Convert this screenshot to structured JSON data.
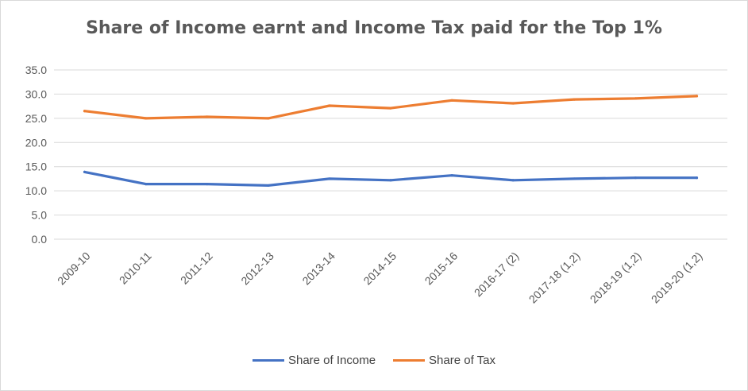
{
  "chart_data": {
    "type": "line",
    "title": "Share of Income earnt and Income Tax paid for the Top 1%",
    "xlabel": "",
    "ylabel": "",
    "categories": [
      "2009-10",
      "2010-11",
      "2011-12",
      "2012-13",
      "2013-14",
      "2014-15",
      "2015-16",
      "2016-17 (2)",
      "2017-18 (1,2)",
      "2018-19  (1,2)",
      "2019-20  (1,2)"
    ],
    "yticks": [
      "0.0",
      "5.0",
      "10.0",
      "15.0",
      "20.0",
      "25.0",
      "30.0",
      "35.0"
    ],
    "ylim": [
      0,
      35
    ],
    "grid": true,
    "legend_position": "bottom",
    "series": [
      {
        "name": "Share of Income",
        "color": "#4472C4",
        "values": [
          13.9,
          11.4,
          11.4,
          11.1,
          12.5,
          12.2,
          13.2,
          12.2,
          12.5,
          12.7,
          12.7
        ]
      },
      {
        "name": "Share of Tax",
        "color": "#ED7D31",
        "values": [
          26.5,
          25.0,
          25.3,
          25.0,
          27.6,
          27.1,
          28.7,
          28.1,
          28.9,
          29.1,
          29.6
        ]
      }
    ]
  }
}
